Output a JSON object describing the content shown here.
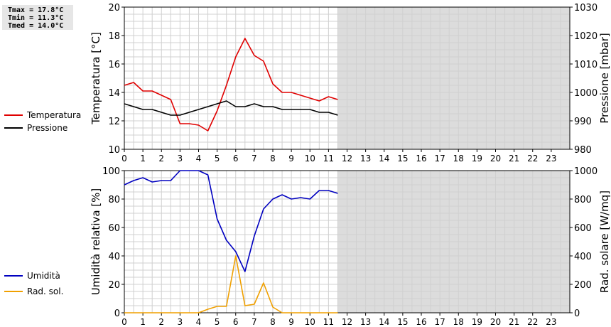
{
  "stats": {
    "tmax": "Tmax = 17.8°C",
    "tmin": "Tmin = 11.3°C",
    "tmed": "Tmed = 14.0°C"
  },
  "legends": {
    "top": [
      {
        "label": "Temperatura",
        "color": "#e00000"
      },
      {
        "label": "Pressione",
        "color": "#000000"
      }
    ],
    "bottom": [
      {
        "label": "Umidità",
        "color": "#0000c0"
      },
      {
        "label": "Rad. sol.",
        "color": "#f0a000"
      }
    ]
  },
  "chart_data": [
    {
      "type": "line",
      "ylabel": "Temperatura [°C]",
      "y2label": "Pressione [mbar]",
      "ylim": [
        10,
        20
      ],
      "y2lim": [
        980,
        1030
      ],
      "yticks": [
        "10",
        "12",
        "14",
        "16",
        "18",
        "20"
      ],
      "y2ticks": [
        "980",
        "990",
        "1000",
        "1010",
        "1020",
        "1030"
      ],
      "xlim": [
        0,
        24
      ],
      "xticks": [
        "0",
        "1",
        "2",
        "3",
        "4",
        "5",
        "6",
        "7",
        "8",
        "9",
        "10",
        "11",
        "12",
        "13",
        "14",
        "15",
        "16",
        "17",
        "18",
        "19",
        "20",
        "21",
        "22",
        "23"
      ],
      "no_data_from": 11.5,
      "grid": true,
      "series": [
        {
          "name": "Temperatura",
          "axis": "left",
          "color": "#e00000",
          "x": [
            0,
            0.5,
            1,
            1.5,
            2,
            2.5,
            3,
            3.5,
            4,
            4.5,
            5,
            5.5,
            6,
            6.5,
            7,
            7.5,
            8,
            8.5,
            9,
            9.5,
            10,
            10.5,
            11,
            11.5
          ],
          "y": [
            14.5,
            14.7,
            14.1,
            14.1,
            13.8,
            13.5,
            11.8,
            11.8,
            11.7,
            11.3,
            12.7,
            14.5,
            16.5,
            17.8,
            16.6,
            16.2,
            14.6,
            14.0,
            14.0,
            13.8,
            13.6,
            13.4,
            13.7,
            13.5
          ]
        },
        {
          "name": "Pressione",
          "axis": "right",
          "color": "#000000",
          "x": [
            0,
            0.5,
            1,
            1.5,
            2,
            2.5,
            3,
            3.5,
            4,
            4.5,
            5,
            5.5,
            6,
            6.5,
            7,
            7.5,
            8,
            8.5,
            9,
            9.5,
            10,
            10.5,
            11,
            11.5
          ],
          "y": [
            996,
            995,
            994,
            994,
            993,
            992,
            992,
            993,
            994,
            995,
            996,
            997,
            995,
            995,
            996,
            995,
            995,
            994,
            994,
            994,
            994,
            993,
            993,
            992
          ]
        }
      ]
    },
    {
      "type": "line",
      "ylabel": "Umidità relativa [%]",
      "y2label": "Rad. solare [W/mq]",
      "ylim": [
        0,
        100
      ],
      "y2lim": [
        0,
        1000
      ],
      "yticks": [
        "0",
        "20",
        "40",
        "60",
        "80",
        "100"
      ],
      "y2ticks": [
        "0",
        "200",
        "400",
        "600",
        "800",
        "1000"
      ],
      "xlim": [
        0,
        24
      ],
      "xticks": [
        "0",
        "1",
        "2",
        "3",
        "4",
        "5",
        "6",
        "7",
        "8",
        "9",
        "10",
        "11",
        "12",
        "13",
        "14",
        "15",
        "16",
        "17",
        "18",
        "19",
        "20",
        "21",
        "22",
        "23"
      ],
      "no_data_from": 11.5,
      "grid": true,
      "series": [
        {
          "name": "Umidità",
          "axis": "left",
          "color": "#0000c0",
          "x": [
            0,
            0.5,
            1,
            1.5,
            2,
            2.5,
            3,
            3.5,
            4,
            4.5,
            5,
            5.5,
            6,
            6.5,
            7,
            7.5,
            8,
            8.5,
            9,
            9.5,
            10,
            10.5,
            11,
            11.5
          ],
          "y": [
            90,
            93,
            95,
            92,
            93,
            93,
            100,
            100,
            100,
            97,
            66,
            51,
            43,
            29,
            54,
            73,
            80,
            83,
            80,
            81,
            80,
            86,
            86,
            84
          ]
        },
        {
          "name": "Rad. sol.",
          "axis": "right",
          "color": "#f0a000",
          "x": [
            0,
            0.5,
            1,
            1.5,
            2,
            2.5,
            3,
            3.5,
            4,
            4.5,
            5,
            5.5,
            6,
            6.5,
            7,
            7.5,
            8,
            8.5,
            9,
            9.5,
            10,
            10.5,
            11,
            11.5
          ],
          "y": [
            0,
            0,
            0,
            0,
            0,
            0,
            0,
            0,
            0,
            25,
            45,
            45,
            400,
            50,
            60,
            210,
            40,
            0,
            0,
            0,
            0,
            0,
            0,
            0
          ]
        }
      ]
    }
  ]
}
